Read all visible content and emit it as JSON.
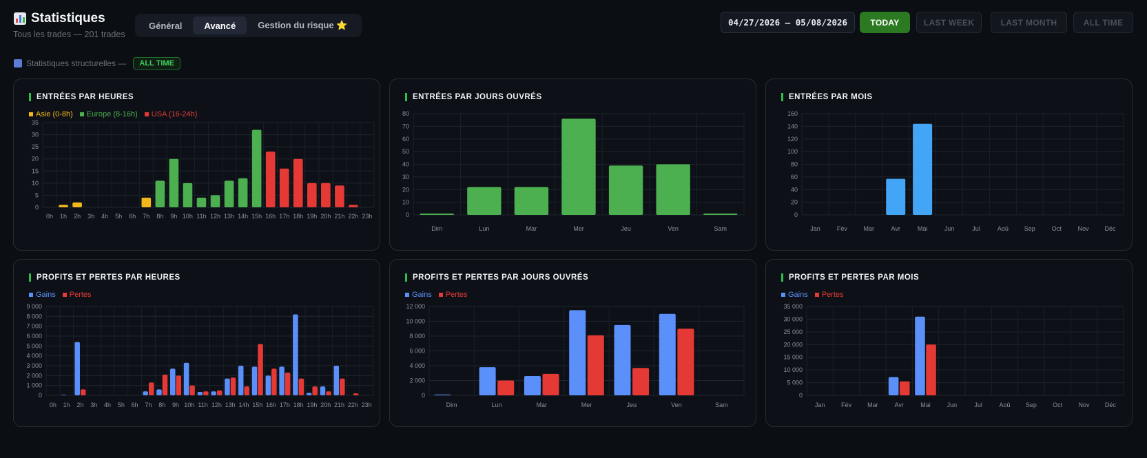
{
  "header": {
    "title": "Statistiques",
    "subtitle": "Tous les trades — 201 trades",
    "tabs": [
      {
        "label": "Général"
      },
      {
        "label": "Avancé"
      },
      {
        "label": "Gestion du risque ⭐"
      }
    ],
    "active_tab": "Avancé",
    "date_range": "04/27/2026 — 05/08/2026",
    "filters": [
      {
        "label": "TODAY",
        "active": true
      },
      {
        "label": "LAST WEEK",
        "active": false
      },
      {
        "label": "LAST MONTH",
        "active": false
      },
      {
        "label": "ALL TIME",
        "active": false
      }
    ],
    "title_icon": "bar-chart-icon"
  },
  "structural": {
    "label": "Statistiques structurelles —",
    "badge": "ALL TIME",
    "icon": "bar-chart-icon"
  },
  "colors": {
    "asia": "#f2b81b",
    "europe": "#4caf50",
    "usa": "#e53935",
    "gains": "#5b8ff9",
    "pertes": "#e53935",
    "month_bar": "#42a5f5",
    "accent": "#2fbf4a"
  },
  "chart_data": [
    {
      "id": "entries_hours",
      "type": "bar",
      "title": "ENTRÉES PAR HEURES",
      "legend": [
        "Asie (0-8h)",
        "Europe (8-16h)",
        "USA (16-24h)"
      ],
      "categories": [
        "0h",
        "1h",
        "2h",
        "3h",
        "4h",
        "5h",
        "6h",
        "7h",
        "8h",
        "9h",
        "10h",
        "11h",
        "12h",
        "13h",
        "14h",
        "15h",
        "16h",
        "17h",
        "18h",
        "19h",
        "20h",
        "21h",
        "22h",
        "23h"
      ],
      "values": [
        0,
        1,
        2,
        0,
        0,
        0,
        0,
        4,
        11,
        20,
        10,
        4,
        5,
        11,
        12,
        32,
        23,
        16,
        20,
        10,
        10,
        9,
        1,
        0
      ],
      "ylim": [
        0,
        35
      ],
      "yticks": [
        0,
        5,
        10,
        15,
        20,
        25,
        30,
        35
      ],
      "yticklabels": [
        "0",
        "5",
        "10",
        "15",
        "20",
        "25",
        "30",
        "35"
      ]
    },
    {
      "id": "entries_weekdays",
      "type": "bar",
      "title": "ENTRÉES PAR JOURS OUVRÉS",
      "categories": [
        "Dim",
        "Lun",
        "Mar",
        "Mer",
        "Jeu",
        "Ven",
        "Sam"
      ],
      "values": [
        1,
        22,
        22,
        76,
        39,
        40,
        1
      ],
      "ylim": [
        0,
        80
      ],
      "yticks": [
        0,
        10,
        20,
        30,
        40,
        50,
        60,
        70,
        80
      ],
      "yticklabels": [
        "0",
        "10",
        "20",
        "30",
        "40",
        "50",
        "60",
        "70",
        "80"
      ]
    },
    {
      "id": "entries_months",
      "type": "bar",
      "title": "ENTRÉES PAR MOIS",
      "categories": [
        "Jan",
        "Fév",
        "Mar",
        "Avr",
        "Mai",
        "Jun",
        "Jul",
        "Aoû",
        "Sep",
        "Oct",
        "Nov",
        "Déc"
      ],
      "values": [
        0,
        0,
        0,
        57,
        144,
        0,
        0,
        0,
        0,
        0,
        0,
        0
      ],
      "ylim": [
        0,
        160
      ],
      "yticks": [
        0,
        20,
        40,
        60,
        80,
        100,
        120,
        140,
        160
      ],
      "yticklabels": [
        "0",
        "20",
        "40",
        "60",
        "80",
        "100",
        "120",
        "140",
        "160"
      ]
    },
    {
      "id": "pnl_hours",
      "type": "bar",
      "title": "PROFITS ET PERTES PAR HEURES",
      "legend": [
        "Gains",
        "Pertes"
      ],
      "categories": [
        "0h",
        "1h",
        "2h",
        "3h",
        "4h",
        "5h",
        "6h",
        "7h",
        "8h",
        "9h",
        "10h",
        "11h",
        "12h",
        "13h",
        "14h",
        "15h",
        "16h",
        "17h",
        "18h",
        "19h",
        "20h",
        "21h",
        "22h",
        "23h"
      ],
      "series": [
        {
          "name": "Gains",
          "values": [
            0,
            50,
            5400,
            0,
            0,
            0,
            0,
            400,
            600,
            2700,
            3300,
            350,
            400,
            1700,
            3000,
            2900,
            2000,
            2900,
            8200,
            250,
            900,
            3000,
            0,
            0
          ]
        },
        {
          "name": "Pertes",
          "values": [
            0,
            0,
            600,
            0,
            0,
            0,
            0,
            1300,
            2100,
            2000,
            1000,
            400,
            500,
            1800,
            900,
            5200,
            2700,
            2300,
            1700,
            900,
            400,
            1700,
            200,
            0
          ]
        }
      ],
      "ylim": [
        0,
        9000
      ],
      "yticks": [
        0,
        1000,
        2000,
        3000,
        4000,
        5000,
        6000,
        7000,
        8000,
        9000
      ],
      "yticklabels": [
        "0",
        "1 000",
        "2 000",
        "3 000",
        "4 000",
        "5 000",
        "6 000",
        "7 000",
        "8 000",
        "9 000"
      ]
    },
    {
      "id": "pnl_weekdays",
      "type": "bar",
      "title": "PROFITS ET PERTES PAR JOURS OUVRÉS",
      "legend": [
        "Gains",
        "Pertes"
      ],
      "categories": [
        "Dim",
        "Lun",
        "Mar",
        "Mer",
        "Jeu",
        "Ven",
        "Sam"
      ],
      "series": [
        {
          "name": "Gains",
          "values": [
            100,
            3800,
            2600,
            11500,
            9500,
            11000,
            0
          ]
        },
        {
          "name": "Pertes",
          "values": [
            0,
            2000,
            2900,
            8100,
            3700,
            9000,
            0
          ]
        }
      ],
      "ylim": [
        0,
        12000
      ],
      "yticks": [
        0,
        2000,
        4000,
        6000,
        8000,
        10000,
        12000
      ],
      "yticklabels": [
        "0",
        "2 000",
        "4 000",
        "6 000",
        "8 000",
        "10 000",
        "12 000"
      ]
    },
    {
      "id": "pnl_months",
      "type": "bar",
      "title": "PROFITS ET PERTES PAR MOIS",
      "legend": [
        "Gains",
        "Pertes"
      ],
      "categories": [
        "Jan",
        "Fév",
        "Mar",
        "Avr",
        "Mai",
        "Jun",
        "Jul",
        "Aoû",
        "Sep",
        "Oct",
        "Nov",
        "Déc"
      ],
      "series": [
        {
          "name": "Gains",
          "values": [
            0,
            0,
            0,
            7200,
            31000,
            0,
            0,
            0,
            0,
            0,
            0,
            0
          ]
        },
        {
          "name": "Pertes",
          "values": [
            0,
            0,
            0,
            5500,
            20000,
            0,
            0,
            0,
            0,
            0,
            0,
            0
          ]
        }
      ],
      "ylim": [
        0,
        35000
      ],
      "yticks": [
        0,
        5000,
        10000,
        15000,
        20000,
        25000,
        30000,
        35000
      ],
      "yticklabels": [
        "0",
        "5 000",
        "10 000",
        "15 000",
        "20 000",
        "25 000",
        "30 000",
        "35 000"
      ]
    }
  ]
}
